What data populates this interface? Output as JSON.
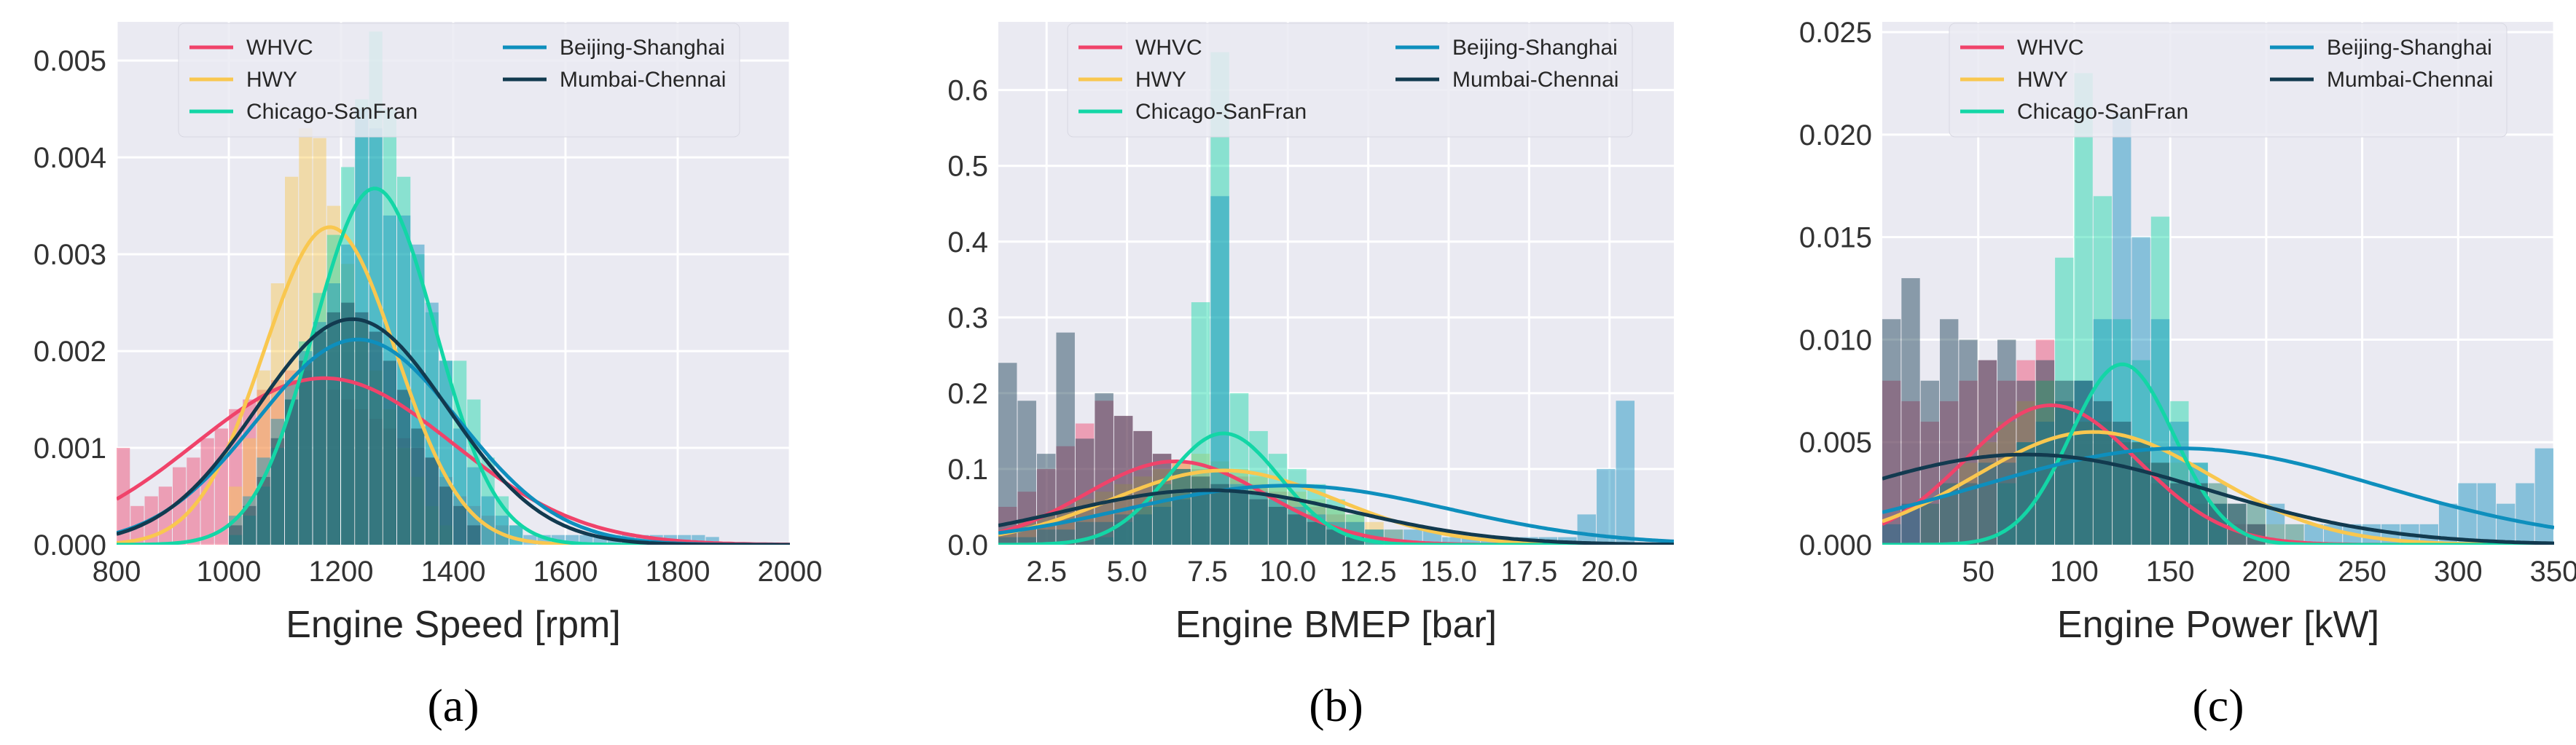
{
  "palette": {
    "WHVC": "#f0436a",
    "HWY": "#f9c74f",
    "Chicago-SanFran": "#13d6a6",
    "Beijing-Shanghai": "#0e8fbd",
    "Mumbai-Chennai": "#123a4f"
  },
  "chart_data": [
    {
      "type": "histogram",
      "caption": "(a)",
      "xlabel": "Engine Speed [rpm]",
      "ylabel": "",
      "xlim": [
        800,
        2000
      ],
      "ylim": [
        0,
        0.0054
      ],
      "xticks": [
        {
          "value": 800,
          "label": "800"
        },
        {
          "value": 1000,
          "label": "1000"
        },
        {
          "value": 1200,
          "label": "1200"
        },
        {
          "value": 1400,
          "label": "1400"
        },
        {
          "value": 1600,
          "label": "1600"
        },
        {
          "value": 1800,
          "label": "1800"
        },
        {
          "value": 2000,
          "label": "2000"
        }
      ],
      "yticks": [
        {
          "value": 0,
          "label": "0.000"
        },
        {
          "value": 0.001,
          "label": "0.001"
        },
        {
          "value": 0.002,
          "label": "0.002"
        },
        {
          "value": 0.003,
          "label": "0.003"
        },
        {
          "value": 0.004,
          "label": "0.004"
        },
        {
          "value": 0.005,
          "label": "0.005"
        }
      ],
      "legend": [
        "WHVC",
        "HWY",
        "Chicago-SanFran",
        "Beijing-Shanghai",
        "Mumbai-Chennai"
      ],
      "series": [
        {
          "name": "WHVC",
          "bin_start": 800,
          "bin_width": 25,
          "hist": [
            0.001,
            0.0004,
            0.0005,
            0.0006,
            0.0008,
            0.0009,
            0.0011,
            0.0012,
            0.0014,
            0.0015,
            0.0016,
            0.0017,
            0.0018,
            0.0018,
            0.0017,
            0.0016,
            0.0015,
            0.0014,
            0.0013,
            0.0012,
            0.0011,
            0.001,
            0.0009,
            0.0007,
            0.0005,
            0.0004,
            0.0003,
            0.0002
          ],
          "kde": {
            "mean": 1170,
            "sd": 230,
            "peak": 0.00172
          }
        },
        {
          "name": "HWY",
          "bin_start": 1000,
          "bin_width": 25,
          "hist": [
            0.0006,
            0.0011,
            0.0018,
            0.0027,
            0.0038,
            0.0043,
            0.0042,
            0.0035,
            0.0029,
            0.0023,
            0.0018,
            0.0014,
            0.001,
            0.0007,
            0.0004,
            0.0002
          ],
          "kde": {
            "mean": 1180,
            "sd": 118,
            "peak": 0.00328
          }
        },
        {
          "name": "Chicago-SanFran",
          "bin_start": 1000,
          "bin_width": 25,
          "hist": [
            0.0001,
            0.0003,
            0.0006,
            0.001,
            0.0015,
            0.0021,
            0.0026,
            0.0032,
            0.0039,
            0.0046,
            0.0053,
            0.0045,
            0.0038,
            0.003,
            0.0024,
            0.0019,
            0.0019,
            0.0015,
            0.0009,
            0.0005,
            0.0002
          ],
          "kde": {
            "mean": 1260,
            "sd": 108,
            "peak": 0.00368
          }
        },
        {
          "name": "Beijing-Shanghai",
          "bin_start": 1000,
          "bin_width": 25,
          "hist": [
            0.0003,
            0.0005,
            0.0009,
            0.0013,
            0.0017,
            0.002,
            0.0023,
            0.0027,
            0.0031,
            0.0045,
            0.0043,
            0.0034,
            0.0034,
            0.0031,
            0.0025,
            0.0019,
            0.0012,
            0.0008,
            0.0005,
            0.0003,
            0.0002,
            0.0001,
            0.0001,
            0.0001,
            0.0001,
            0.0001,
            0.0001,
            0.0001,
            0.0001,
            0.0001,
            0.0001,
            0.0001,
            0.0001,
            0.0001,
            8e-05
          ],
          "kde": {
            "mean": 1230,
            "sd": 180,
            "peak": 0.00212
          }
        },
        {
          "name": "Mumbai-Chennai",
          "bin_start": 1000,
          "bin_width": 25,
          "hist": [
            0.0002,
            0.0004,
            0.0007,
            0.0011,
            0.0015,
            0.0019,
            0.0022,
            0.0024,
            0.0025,
            0.0024,
            0.0022,
            0.0019,
            0.0016,
            0.0012,
            0.0009,
            0.0006,
            0.0004,
            0.0002
          ],
          "kde": {
            "mean": 1220,
            "sd": 170,
            "peak": 0.00233
          }
        }
      ]
    },
    {
      "type": "histogram",
      "caption": "(b)",
      "xlabel": "Engine BMEP [bar]",
      "ylabel": "",
      "xlim": [
        1.0,
        22.0
      ],
      "ylim": [
        0,
        0.69
      ],
      "xticks": [
        {
          "value": 2.5,
          "label": "2.5"
        },
        {
          "value": 5.0,
          "label": "5.0"
        },
        {
          "value": 7.5,
          "label": "7.5"
        },
        {
          "value": 10.0,
          "label": "10.0"
        },
        {
          "value": 12.5,
          "label": "12.5"
        },
        {
          "value": 15.0,
          "label": "15.0"
        },
        {
          "value": 17.5,
          "label": "17.5"
        },
        {
          "value": 20.0,
          "label": "20.0"
        }
      ],
      "yticks": [
        {
          "value": 0,
          "label": "0.0"
        },
        {
          "value": 0.1,
          "label": "0.1"
        },
        {
          "value": 0.2,
          "label": "0.2"
        },
        {
          "value": 0.3,
          "label": "0.3"
        },
        {
          "value": 0.4,
          "label": "0.4"
        },
        {
          "value": 0.5,
          "label": "0.5"
        },
        {
          "value": 0.6,
          "label": "0.6"
        }
      ],
      "legend": [
        "WHVC",
        "HWY",
        "Chicago-SanFran",
        "Beijing-Shanghai",
        "Mumbai-Chennai"
      ],
      "series": [
        {
          "name": "WHVC",
          "bin_start": 1.0,
          "bin_width": 0.6,
          "hist": [
            0.05,
            0.07,
            0.1,
            0.13,
            0.16,
            0.19,
            0.17,
            0.15,
            0.12,
            0.11,
            0.1,
            0.1,
            0.09,
            0.08,
            0.07,
            0.06,
            0.05,
            0.04,
            0.03,
            0.02
          ],
          "kde": {
            "mean": 6.5,
            "sd": 2.8,
            "peak": 0.11
          }
        },
        {
          "name": "HWY",
          "bin_start": 1.0,
          "bin_width": 0.6,
          "hist": [
            0.02,
            0.03,
            0.04,
            0.05,
            0.06,
            0.07,
            0.08,
            0.09,
            0.1,
            0.11,
            0.12,
            0.11,
            0.1,
            0.09,
            0.08,
            0.07,
            0.06,
            0.05,
            0.04,
            0.03,
            0.02
          ],
          "kde": {
            "mean": 8.0,
            "sd": 3.5,
            "peak": 0.098
          }
        },
        {
          "name": "Chicago-SanFran",
          "bin_start": 4.0,
          "bin_width": 0.6,
          "hist": [
            0.01,
            0.03,
            0.05,
            0.08,
            0.1,
            0.32,
            0.65,
            0.2,
            0.15,
            0.12,
            0.1,
            0.08,
            0.06,
            0.04,
            0.02
          ],
          "kde": {
            "mean": 8.0,
            "sd": 1.75,
            "peak": 0.147
          }
        },
        {
          "name": "Beijing-Shanghai",
          "bin_start": 1.0,
          "bin_width": 0.6,
          "hist": [
            0.01,
            0.01,
            0.02,
            0.02,
            0.03,
            0.03,
            0.04,
            0.04,
            0.05,
            0.06,
            0.07,
            0.46,
            0.08,
            0.07,
            0.06,
            0.05,
            0.04,
            0.03,
            0.03,
            0.02,
            0.02,
            0.02,
            0.02,
            0.01,
            0.01,
            0.01,
            0.01,
            0.01,
            0.01,
            0.01,
            0.04,
            0.1,
            0.19
          ],
          "kde": {
            "mean": 10.0,
            "sd": 5.0,
            "peak": 0.078
          }
        },
        {
          "name": "Mumbai-Chennai",
          "bin_start": 1.0,
          "bin_width": 0.6,
          "hist": [
            0.24,
            0.19,
            0.12,
            0.28,
            0.14,
            0.2,
            0.17,
            0.15,
            0.12,
            0.1,
            0.09,
            0.08,
            0.07,
            0.06,
            0.05,
            0.04,
            0.03,
            0.02,
            0.01
          ],
          "kde": {
            "mean": 7.5,
            "sd": 4.5,
            "peak": 0.072
          }
        }
      ]
    },
    {
      "type": "histogram",
      "caption": "(c)",
      "xlabel": "Engine Power [kW]",
      "ylabel": "",
      "xlim": [
        0,
        350
      ],
      "ylim": [
        0,
        0.0255
      ],
      "xticks": [
        {
          "value": 50,
          "label": "50"
        },
        {
          "value": 100,
          "label": "100"
        },
        {
          "value": 150,
          "label": "150"
        },
        {
          "value": 200,
          "label": "200"
        },
        {
          "value": 250,
          "label": "250"
        },
        {
          "value": 300,
          "label": "300"
        },
        {
          "value": 350,
          "label": "350"
        }
      ],
      "yticks": [
        {
          "value": 0,
          "label": "0.000"
        },
        {
          "value": 0.005,
          "label": "0.005"
        },
        {
          "value": 0.01,
          "label": "0.010"
        },
        {
          "value": 0.015,
          "label": "0.015"
        },
        {
          "value": 0.02,
          "label": "0.020"
        },
        {
          "value": 0.025,
          "label": "0.025"
        }
      ],
      "legend": [
        "WHVC",
        "HWY",
        "Chicago-SanFran",
        "Beijing-Shanghai",
        "Mumbai-Chennai"
      ],
      "series": [
        {
          "name": "WHVC",
          "bin_start": 0,
          "bin_width": 10,
          "hist": [
            0.008,
            0.007,
            0.006,
            0.007,
            0.008,
            0.009,
            0.008,
            0.009,
            0.01,
            0.007,
            0.006,
            0.006,
            0.005,
            0.004,
            0.003,
            0.003,
            0.002,
            0.002,
            0.001,
            0.001
          ],
          "kde": {
            "mean": 88,
            "sd": 45,
            "peak": 0.0068
          }
        },
        {
          "name": "HWY",
          "bin_start": 20,
          "bin_width": 10,
          "hist": [
            0.002,
            0.003,
            0.004,
            0.005,
            0.006,
            0.007,
            0.008,
            0.007,
            0.006,
            0.006,
            0.005,
            0.005,
            0.004,
            0.004,
            0.003,
            0.003,
            0.002,
            0.002,
            0.001,
            0.001
          ],
          "kde": {
            "mean": 110,
            "sd": 62,
            "peak": 0.0055
          }
        },
        {
          "name": "Chicago-SanFran",
          "bin_start": 60,
          "bin_width": 10,
          "hist": [
            0.003,
            0.005,
            0.008,
            0.014,
            0.023,
            0.017,
            0.011,
            0.009,
            0.016,
            0.007,
            0.004,
            0.002
          ],
          "kde": {
            "mean": 125,
            "sd": 27,
            "peak": 0.0088
          }
        },
        {
          "name": "Beijing-Shanghai",
          "bin_start": 0,
          "bin_width": 10,
          "hist": [
            0.001,
            0.002,
            0.002,
            0.003,
            0.003,
            0.004,
            0.004,
            0.005,
            0.006,
            0.007,
            0.008,
            0.011,
            0.021,
            0.015,
            0.011,
            0.006,
            0.004,
            0.003,
            0.002,
            0.002,
            0.002,
            0.001,
            0.001,
            0.001,
            0.001,
            0.001,
            0.001,
            0.001,
            0.001,
            0.002,
            0.003,
            0.003,
            0.002,
            0.003,
            0.0047
          ],
          "kde": {
            "mean": 155,
            "sd": 105,
            "peak": 0.0047
          }
        },
        {
          "name": "Mumbai-Chennai",
          "bin_start": 0,
          "bin_width": 10,
          "hist": [
            0.011,
            0.013,
            0.008,
            0.011,
            0.01,
            0.009,
            0.01,
            0.008,
            0.009,
            0.008,
            0.008,
            0.007,
            0.006,
            0.005,
            0.004,
            0.003,
            0.003,
            0.002,
            0.002,
            0.001
          ],
          "kde": {
            "mean": 75,
            "sd": 95,
            "peak": 0.0044
          }
        }
      ]
    }
  ]
}
